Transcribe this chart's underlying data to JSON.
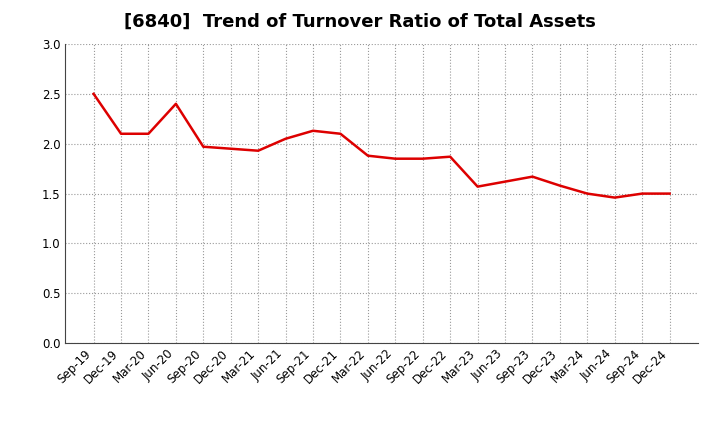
{
  "title": "[6840]  Trend of Turnover Ratio of Total Assets",
  "x_labels": [
    "Sep-19",
    "Dec-19",
    "Mar-20",
    "Jun-20",
    "Sep-20",
    "Dec-20",
    "Mar-21",
    "Jun-21",
    "Sep-21",
    "Dec-21",
    "Mar-22",
    "Jun-22",
    "Sep-22",
    "Dec-22",
    "Mar-23",
    "Jun-23",
    "Sep-23",
    "Dec-23",
    "Mar-24",
    "Jun-24",
    "Sep-24",
    "Dec-24"
  ],
  "y_values": [
    2.5,
    2.1,
    2.1,
    2.4,
    1.97,
    1.95,
    1.93,
    2.05,
    2.13,
    2.1,
    1.88,
    1.85,
    1.85,
    1.87,
    1.57,
    1.62,
    1.67,
    1.58,
    1.5,
    1.46,
    1.5,
    1.5
  ],
  "line_color": "#dd0000",
  "line_width": 1.8,
  "ylim": [
    0.0,
    3.0
  ],
  "yticks": [
    0.0,
    0.5,
    1.0,
    1.5,
    2.0,
    2.5,
    3.0
  ],
  "grid_color": "#999999",
  "bg_color": "#ffffff",
  "title_fontsize": 13,
  "tick_fontsize": 8.5
}
